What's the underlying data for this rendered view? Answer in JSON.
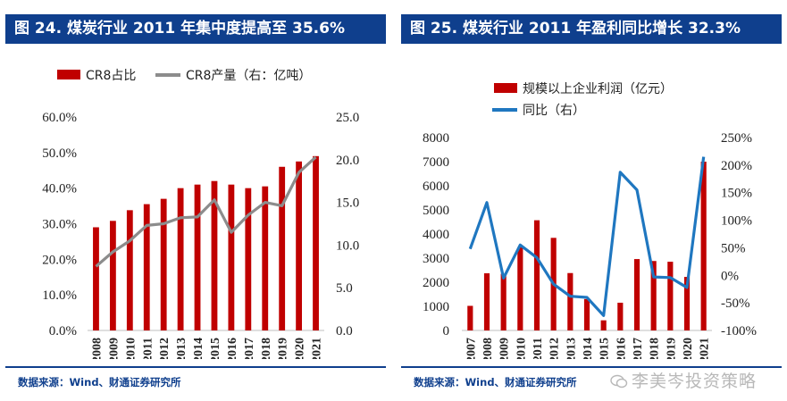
{
  "left": {
    "title": "图 24. 煤炭行业 2011 年集中度提高至 35.6%",
    "source": "数据来源：Wind、财通证券研究所",
    "chart_data": {
      "type": "bar+line",
      "categories": [
        "2008",
        "2009",
        "2010",
        "2011",
        "2012",
        "2013",
        "2014",
        "2015",
        "2016",
        "2017",
        "2018",
        "2019",
        "2020",
        "2021"
      ],
      "series": [
        {
          "name": "CR8占比",
          "type": "bar",
          "axis": "left",
          "color": "#c00000",
          "values": [
            29.0,
            30.8,
            33.8,
            35.5,
            37.0,
            40.0,
            41.0,
            42.0,
            41.0,
            40.0,
            40.5,
            46.0,
            47.5,
            49.0
          ]
        },
        {
          "name": "CR8产量（右：亿吨）",
          "type": "line",
          "axis": "right",
          "color": "#8c8c8c",
          "values": [
            7.5,
            9.2,
            10.5,
            12.3,
            12.5,
            13.2,
            13.3,
            15.3,
            11.5,
            13.5,
            15.0,
            14.6,
            18.5,
            20.3
          ]
        }
      ],
      "y_left": {
        "min": 0,
        "max": 60,
        "ticks": [
          0,
          10,
          20,
          30,
          40,
          50,
          60
        ],
        "tick_labels": [
          "0.0%",
          "10.0%",
          "20.0%",
          "30.0%",
          "40.0%",
          "50.0%",
          "60.0%"
        ]
      },
      "y_right": {
        "min": 0,
        "max": 25,
        "ticks": [
          0,
          5,
          10,
          15,
          20,
          25
        ],
        "tick_labels": [
          "0.0",
          "5.0",
          "10.0",
          "15.0",
          "20.0",
          "25.0"
        ]
      },
      "legend": [
        "CR8占比",
        "CR8产量（右：亿吨）"
      ]
    }
  },
  "right": {
    "title": "图 25. 煤炭行业 2011 年盈利同比增长 32.3%",
    "source": "数据来源：Wind、财通证券研究所",
    "watermark": "李美岑投资策略",
    "chart_data": {
      "type": "bar+line",
      "categories": [
        "2007",
        "2008",
        "2009",
        "2010",
        "2011",
        "2012",
        "2013",
        "2014",
        "2015",
        "2016",
        "2017",
        "2018",
        "2019",
        "2020",
        "2021"
      ],
      "series": [
        {
          "name": "规模以上企业利润（亿元）",
          "type": "bar",
          "axis": "left",
          "color": "#c00000",
          "values": [
            1020,
            2370,
            2350,
            3450,
            4570,
            3840,
            2380,
            1300,
            420,
            1150,
            2960,
            2880,
            2850,
            2220,
            7000
          ]
        },
        {
          "name": "同比（右）",
          "type": "line",
          "axis": "right",
          "color": "#1f77c0",
          "values": [
            48,
            132,
            -5,
            55,
            32,
            -16,
            -38,
            -40,
            -73,
            187,
            155,
            -3,
            -4,
            -22,
            215
          ]
        }
      ],
      "y_left": {
        "min": 0,
        "max": 8000,
        "ticks": [
          0,
          1000,
          2000,
          3000,
          4000,
          5000,
          6000,
          7000,
          8000
        ],
        "tick_labels": [
          "0",
          "1000",
          "2000",
          "3000",
          "4000",
          "5000",
          "6000",
          "7000",
          "8000"
        ]
      },
      "y_right": {
        "min": -100,
        "max": 250,
        "ticks": [
          -100,
          -50,
          0,
          50,
          100,
          150,
          200,
          250
        ],
        "tick_labels": [
          "-100%",
          "-50%",
          "0%",
          "50%",
          "100%",
          "150%",
          "200%",
          "250%"
        ]
      },
      "legend": [
        "规模以上企业利润（亿元）",
        "同比（右）"
      ]
    }
  }
}
